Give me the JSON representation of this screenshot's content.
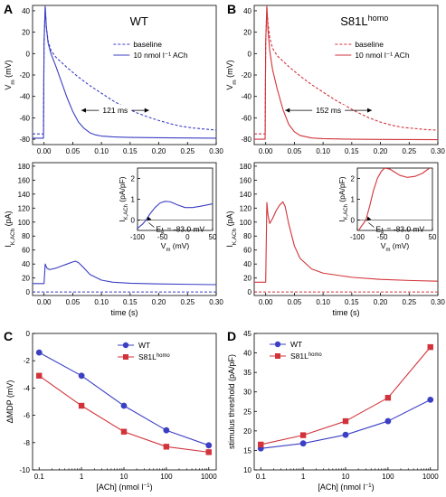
{
  "colors": {
    "wt": "#3b3fc4",
    "mut": "#d2333a",
    "axis": "#000000"
  },
  "panels": {
    "A": {
      "letter": "A",
      "top": {
        "genotype": "WT",
        "ylabel_main": "V",
        "ylabel_sub": "m",
        "ylabel_unit": "(mV)",
        "xlim": [
          -0.02,
          0.3
        ],
        "ylim": [
          -85,
          45
        ],
        "yticks": [
          -80,
          -60,
          -40,
          -20,
          0,
          20,
          40
        ],
        "xticks": [
          0.0,
          0.05,
          0.1,
          0.15,
          0.2,
          0.25,
          0.3
        ],
        "legend": {
          "baseline": "baseline",
          "ach": "10 nmol l⁻¹ ACh"
        },
        "annotation": "121 ms",
        "series": {
          "baseline": {
            "x": [
              -0.02,
              -0.001,
              0.0,
              0.002,
              0.004,
              0.007,
              0.012,
              0.02,
              0.03,
              0.04,
              0.06,
              0.08,
              0.1,
              0.12,
              0.14,
              0.16,
              0.18,
              0.2,
              0.22,
              0.24,
              0.26,
              0.28,
              0.3
            ],
            "y": [
              -75,
              -75,
              10,
              44,
              25,
              12,
              3,
              -3,
              -8,
              -13,
              -22,
              -30,
              -37,
              -44,
              -50,
              -55,
              -59,
              -62.5,
              -65.5,
              -68,
              -69.5,
              -70.5,
              -71.5
            ]
          },
          "ach": {
            "x": [
              -0.02,
              -0.001,
              0.0,
              0.002,
              0.004,
              0.007,
              0.012,
              0.02,
              0.03,
              0.04,
              0.05,
              0.06,
              0.07,
              0.08,
              0.09,
              0.1,
              0.12,
              0.15,
              0.2,
              0.25,
              0.3
            ],
            "y": [
              -79,
              -79,
              10,
              44,
              25,
              10,
              0,
              -11,
              -26,
              -41,
              -54,
              -64,
              -70,
              -74,
              -76,
              -77,
              -77.8,
              -78.3,
              -78.6,
              -78.8,
              -79
            ]
          }
        }
      },
      "bottom": {
        "ylabel_main": "I",
        "ylabel_sub": "K,ACh",
        "ylabel_unit": "(pA)",
        "xlabel": "time (s)",
        "xlim": [
          -0.02,
          0.3
        ],
        "ylim": [
          -5,
          185
        ],
        "yticks": [
          0,
          20,
          40,
          60,
          80,
          100,
          120,
          140,
          160,
          180
        ],
        "xticks": [
          0.0,
          0.05,
          0.1,
          0.15,
          0.2,
          0.25,
          0.3
        ],
        "series": {
          "baseline": {
            "x": [
              -0.02,
              0.3
            ],
            "y": [
              0,
              0
            ]
          },
          "ach": {
            "x": [
              -0.02,
              -0.001,
              0.0,
              0.002,
              0.005,
              0.01,
              0.02,
              0.03,
              0.04,
              0.05,
              0.055,
              0.06,
              0.07,
              0.08,
              0.1,
              0.12,
              0.15,
              0.2,
              0.25,
              0.3
            ],
            "y": [
              12,
              12,
              12,
              40,
              34,
              32,
              34,
              37,
              40,
              43,
              44,
              42,
              34,
              25,
              17,
              14,
              12.5,
              11.5,
              11,
              10.5
            ]
          }
        },
        "inset": {
          "ylabel_main": "I",
          "ylabel_sub": "K,ACh",
          "ylabel_unit": "(pA/pF)",
          "xlabel_main": "V",
          "xlabel_sub": "m",
          "xlabel_unit": "(mV)",
          "annotation": "E",
          "annotation_sub": "K",
          "annotation_value": " = -83.0 mV",
          "xlim": [
            -100,
            50
          ],
          "ylim": [
            -0.5,
            2.5
          ],
          "yticks": [
            0,
            1,
            2
          ],
          "xticks": [
            -100,
            -50,
            0,
            50
          ],
          "series": {
            "x": [
              -100,
              -90,
              -83,
              -75,
              -65,
              -55,
              -45,
              -35,
              -20,
              -5,
              10,
              25,
              40,
              50
            ],
            "y": [
              -0.4,
              -0.2,
              0,
              0.3,
              0.6,
              0.82,
              0.9,
              0.88,
              0.73,
              0.6,
              0.6,
              0.66,
              0.73,
              0.78
            ]
          }
        }
      }
    },
    "B": {
      "letter": "B",
      "top": {
        "genotype_main": "S81L",
        "genotype_sup": "homo",
        "ylabel_main": "V",
        "ylabel_sub": "m",
        "ylabel_unit": "(mV)",
        "xlim": [
          -0.02,
          0.3
        ],
        "ylim": [
          -85,
          45
        ],
        "yticks": [
          -80,
          -60,
          -40,
          -20,
          0,
          20,
          40
        ],
        "xticks": [
          0.0,
          0.05,
          0.1,
          0.15,
          0.2,
          0.25,
          0.3
        ],
        "legend": {
          "baseline": "baseline",
          "ach": "10 nmol l⁻¹ ACh"
        },
        "annotation": "152 ms",
        "series": {
          "baseline": {
            "x": [
              -0.02,
              -0.001,
              0.0,
              0.002,
              0.004,
              0.007,
              0.012,
              0.02,
              0.03,
              0.04,
              0.06,
              0.08,
              0.1,
              0.12,
              0.14,
              0.16,
              0.18,
              0.2,
              0.22,
              0.24,
              0.26,
              0.28,
              0.3
            ],
            "y": [
              -75,
              -75,
              10,
              44,
              28,
              15,
              5,
              -2,
              -7,
              -12,
              -21,
              -29,
              -36,
              -43,
              -49,
              -55,
              -60,
              -64,
              -67,
              -69,
              -70,
              -71,
              -71.5
            ]
          },
          "ach": {
            "x": [
              -0.02,
              -0.001,
              0.0,
              0.002,
              0.004,
              0.007,
              0.012,
              0.02,
              0.03,
              0.04,
              0.05,
              0.06,
              0.08,
              0.1,
              0.15,
              0.2,
              0.25,
              0.3
            ],
            "y": [
              -80,
              -80,
              10,
              44,
              22,
              3,
              -15,
              -33,
              -52,
              -66,
              -73,
              -76.5,
              -78.8,
              -79.5,
              -80,
              -80.2,
              -80.3,
              -80.4
            ]
          }
        }
      },
      "bottom": {
        "ylabel_main": "I",
        "ylabel_sub": "K,ACh",
        "ylabel_unit": "(pA)",
        "xlabel": "time (s)",
        "xlim": [
          -0.02,
          0.3
        ],
        "ylim": [
          -5,
          185
        ],
        "yticks": [
          0,
          20,
          40,
          60,
          80,
          100,
          120,
          140,
          160,
          180
        ],
        "xticks": [
          0.0,
          0.05,
          0.1,
          0.15,
          0.2,
          0.25,
          0.3
        ],
        "series": {
          "baseline": {
            "x": [
              -0.02,
              0.3
            ],
            "y": [
              0,
              0
            ]
          },
          "ach": {
            "x": [
              -0.02,
              -0.001,
              0.0,
              0.002,
              0.004,
              0.007,
              0.012,
              0.018,
              0.024,
              0.03,
              0.034,
              0.04,
              0.05,
              0.06,
              0.08,
              0.1,
              0.15,
              0.2,
              0.25,
              0.3
            ],
            "y": [
              14,
              14,
              14,
              128,
              110,
              98,
              105,
              116,
              124,
              129,
              122,
              98,
              66,
              48,
              33,
              27,
              21,
              18,
              16.5,
              15.5
            ]
          }
        },
        "inset": {
          "ylabel_main": "I",
          "ylabel_sub": "K,ACh",
          "ylabel_unit": "(pA/pF)",
          "xlabel_main": "V",
          "xlabel_sub": "m",
          "xlabel_unit": "(mV)",
          "annotation": "E",
          "annotation_sub": "K",
          "annotation_value": " = -83.0 mV",
          "xlim": [
            -100,
            50
          ],
          "ylim": [
            -0.5,
            2.5
          ],
          "yticks": [
            0,
            1,
            2
          ],
          "xticks": [
            -100,
            -50,
            0,
            50
          ],
          "series": {
            "x": [
              -100,
              -92,
              -83,
              -75,
              -68,
              -60,
              -52,
              -45,
              -35,
              -25,
              -15,
              0,
              15,
              30,
              50
            ],
            "y": [
              -0.6,
              -0.3,
              0,
              0.7,
              1.4,
              2.0,
              2.35,
              2.5,
              2.45,
              2.3,
              2.15,
              2.05,
              2.1,
              2.25,
              2.6
            ]
          }
        }
      }
    },
    "C": {
      "letter": "C",
      "ylabel": "ΔMDP (mV)",
      "xlabel_main": "[ACh] (nmol l",
      "xlabel_sup": "−1",
      "xlabel_end": ")",
      "xlim_log": [
        0.07,
        1500
      ],
      "ylim": [
        -10,
        0
      ],
      "yticks": [
        0,
        -2,
        -4,
        -6,
        -8,
        -10
      ],
      "xticks": [
        0.1,
        1,
        10,
        100,
        1000
      ],
      "xticklabels": [
        "0.1",
        "1",
        "10",
        "100",
        "1000"
      ],
      "legend": [
        {
          "main": "WT",
          "sup": ""
        },
        {
          "main": "S81L",
          "sup": "homo"
        }
      ],
      "series": [
        {
          "x": [
            0.1,
            1,
            10,
            100,
            1000
          ],
          "y": [
            -1.4,
            -3.1,
            -5.3,
            -7.1,
            -8.2
          ]
        },
        {
          "x": [
            0.1,
            1,
            10,
            100,
            1000
          ],
          "y": [
            -3.1,
            -5.3,
            -7.2,
            -8.3,
            -8.7
          ]
        }
      ]
    },
    "D": {
      "letter": "D",
      "ylabel": "stimulus threshold (pA/pF)",
      "xlabel_main": "[ACh] (nmol l",
      "xlabel_sup": "−1",
      "xlabel_end": ")",
      "xlim_log": [
        0.07,
        1500
      ],
      "ylim": [
        10,
        45
      ],
      "yticks": [
        10,
        15,
        20,
        25,
        30,
        35,
        40,
        45
      ],
      "xticks": [
        0.1,
        1,
        10,
        100,
        1000
      ],
      "xticklabels": [
        "0.1",
        "1",
        "10",
        "100",
        "1000"
      ],
      "legend": [
        {
          "main": "WT",
          "sup": ""
        },
        {
          "main": "S81L",
          "sup": "homo"
        }
      ],
      "series": [
        {
          "x": [
            0.1,
            1,
            10,
            100,
            1000
          ],
          "y": [
            15.5,
            16.8,
            19,
            22.5,
            28
          ]
        },
        {
          "x": [
            0.1,
            1,
            10,
            100,
            1000
          ],
          "y": [
            16.5,
            18.9,
            22.5,
            28.5,
            41.5
          ]
        }
      ]
    }
  }
}
